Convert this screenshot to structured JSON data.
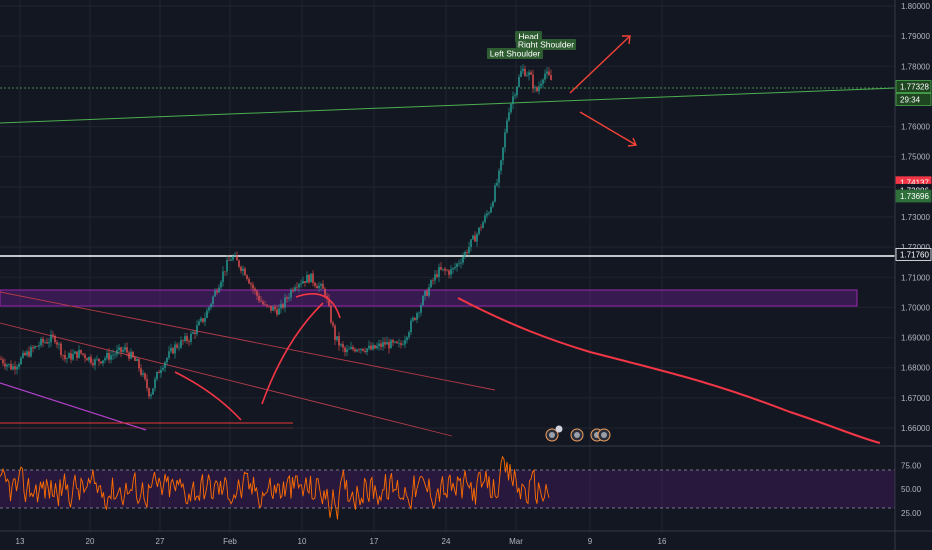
{
  "chart_data": {
    "type": "candlestick",
    "y_axis": {
      "ticks": [
        "1.80000",
        "1.79000",
        "1.78000",
        "1.76000",
        "1.75000",
        "1.74000",
        "1.73000",
        "1.72000",
        "1.71000",
        "1.70000",
        "1.69000",
        "1.68000",
        "1.67000",
        "1.66000"
      ],
      "ylim": [
        1.6545,
        1.8015
      ]
    },
    "x_axis": {
      "labels": [
        "13",
        "20",
        "27",
        "Feb",
        "10",
        "17",
        "24",
        "Mar",
        "9",
        "16"
      ]
    },
    "price_tags": [
      {
        "label": "1.77328",
        "value": 1.77328,
        "bg": "#1e4620",
        "border": "#4caf50"
      },
      {
        "label": "29:34",
        "value": 1.769,
        "bg": "#1e4620",
        "border": "#4caf50"
      },
      {
        "label": "1.74137",
        "value": 1.74137,
        "bg": "#f23645",
        "border": "#f23645"
      },
      {
        "label": "1.73886",
        "value": 1.73886,
        "bg": "#131722",
        "border": "#131722"
      },
      {
        "label": "1.73696",
        "value": 1.73696,
        "bg": "#2f6f3a",
        "border": "#2f6f3a"
      },
      {
        "label": "1.71760",
        "value": 1.7176,
        "bg": "#131722",
        "border": "#ffffff"
      }
    ],
    "pattern_labels": [
      "Head",
      "Right Shoulder",
      "Left Shoulder"
    ],
    "rsi": {
      "ticks": [
        "75.00",
        "50.00",
        "25.00"
      ],
      "range": [
        0,
        100
      ],
      "upper": 70,
      "lower": 30
    },
    "colors": {
      "up": "#26a69a",
      "down": "#ef5350",
      "rsi_line": "#ff6d00",
      "zone": "#7b1fa2",
      "trend_green": "#4caf50",
      "arrow": "#f44336"
    }
  }
}
